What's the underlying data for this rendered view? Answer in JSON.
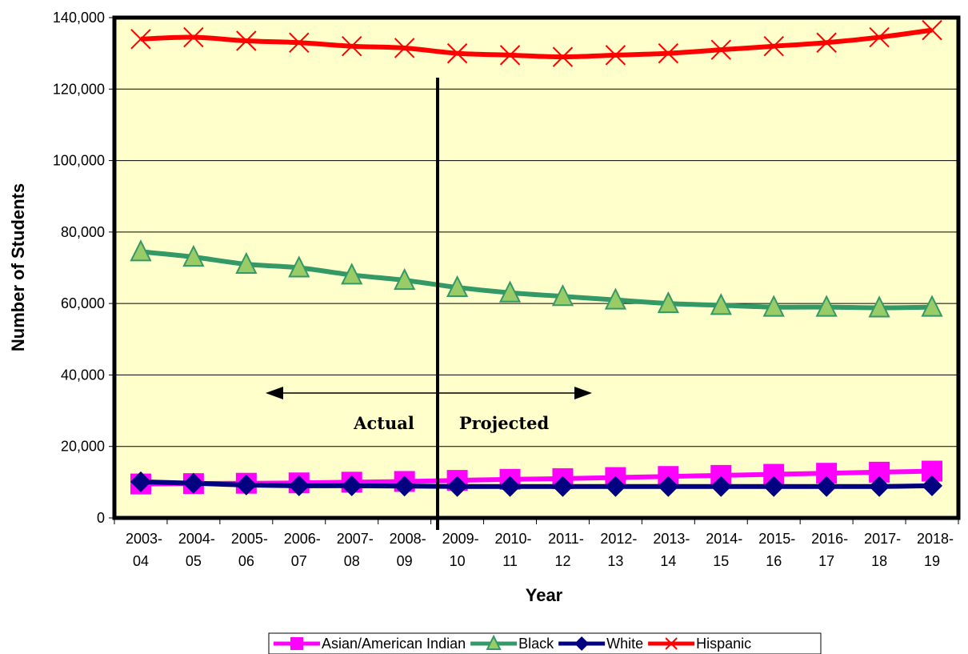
{
  "chart_data": {
    "type": "line",
    "xlabel": "Year",
    "ylabel": "Number of Students",
    "ylim": [
      0,
      140000
    ],
    "y_ticks": [
      "0",
      "20,000",
      "40,000",
      "60,000",
      "80,000",
      "100,000",
      "120,000",
      "140,000"
    ],
    "y_tick_values": [
      0,
      20000,
      40000,
      60000,
      80000,
      100000,
      120000,
      140000
    ],
    "categories": [
      [
        "2003-",
        "04"
      ],
      [
        "2004-",
        "05"
      ],
      [
        "2005-",
        "06"
      ],
      [
        "2006-",
        "07"
      ],
      [
        "2007-",
        "08"
      ],
      [
        "2008-",
        "09"
      ],
      [
        "2009-",
        "10"
      ],
      [
        "2010-",
        "11"
      ],
      [
        "2011-",
        "12"
      ],
      [
        "2012-",
        "13"
      ],
      [
        "2013-",
        "14"
      ],
      [
        "2014-",
        "15"
      ],
      [
        "2015-",
        "16"
      ],
      [
        "2016-",
        "17"
      ],
      [
        "2017-",
        "18"
      ],
      [
        "2018-",
        "19"
      ]
    ],
    "grid": true,
    "plot_background": "#ffffcc",
    "legend_position": "bottom",
    "series": [
      {
        "name": "Asian/American Indian",
        "color": "#ff00ff",
        "marker": "square",
        "values": [
          9500,
          9600,
          9700,
          9800,
          10000,
          10200,
          10500,
          10800,
          11000,
          11300,
          11600,
          11900,
          12200,
          12500,
          12800,
          13100
        ]
      },
      {
        "name": "Black",
        "color": "#339966",
        "marker": "triangle",
        "values": [
          74500,
          73000,
          71000,
          70000,
          68000,
          66500,
          64500,
          63000,
          62000,
          61000,
          60000,
          59500,
          59000,
          59000,
          58800,
          59000
        ]
      },
      {
        "name": "White",
        "color": "#000080",
        "marker": "diamond",
        "values": [
          10100,
          9700,
          9200,
          9000,
          9000,
          8900,
          8800,
          8800,
          8800,
          8800,
          8800,
          8800,
          8800,
          8800,
          8800,
          9000
        ]
      },
      {
        "name": "Hispanic",
        "color": "#ff0000",
        "marker": "x",
        "values": [
          134000,
          134500,
          133500,
          133000,
          132000,
          131500,
          130000,
          129500,
          129000,
          129500,
          130000,
          131000,
          132000,
          133000,
          134500,
          136500
        ]
      }
    ],
    "annotations": {
      "actual_label": "Actual",
      "projected_label": "Projected",
      "divider_between": [
        5,
        6
      ]
    }
  }
}
